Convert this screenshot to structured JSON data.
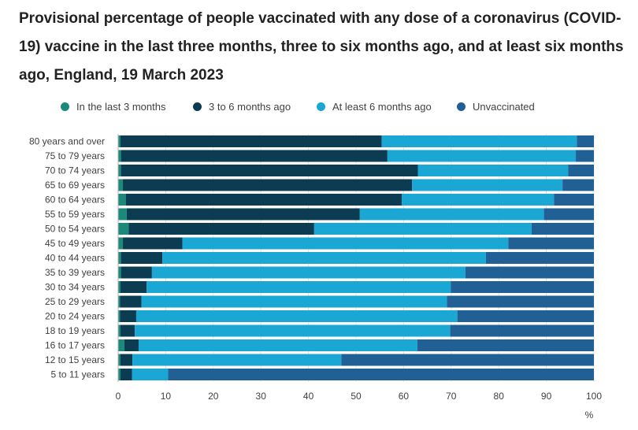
{
  "page": {
    "title": "Provisional percentage of people vaccinated with any dose of a coronavirus (COVID-19) vaccine in the last three months, three to six months ago, and at least six months ago, England, 19 March 2023"
  },
  "colors": {
    "last_3_months": "#1c8a7a",
    "three_to_six_months": "#0b3c52",
    "at_least_6_months": "#1aa7d4",
    "unvaccinated": "#206095",
    "axis_text": "#414042",
    "gridline": "#e0e0e0"
  },
  "chart_data": {
    "type": "bar",
    "orientation": "horizontal",
    "stacked": true,
    "title": "Provisional percentage of people vaccinated with any dose of a coronavirus (COVID-19) vaccine in the last three months, three to six months ago, and at least six months ago, England, 19 March 2023",
    "xlabel": "%",
    "ylabel": "",
    "xlim": [
      0,
      100
    ],
    "xticks": [
      0,
      10,
      20,
      30,
      40,
      50,
      60,
      70,
      80,
      90,
      100
    ],
    "grid": true,
    "legend_position": "top",
    "categories": [
      "80 years and over",
      "75 to 79 years",
      "70 to 74 years",
      "65 to 69 years",
      "60 to 64 years",
      "55 to 59 years",
      "50 to 54 years",
      "45 to 49 years",
      "40 to 44 years",
      "35 to 39 years",
      "30 to 34 years",
      "25 to 29 years",
      "20 to 24 years",
      "18 to 19 years",
      "16 to 17 years",
      "12 to 15 years",
      "5 to 11 years"
    ],
    "series": [
      {
        "name": "In the last 3 months",
        "values": [
          0.5,
          0.6,
          0.6,
          1.0,
          1.6,
          1.8,
          2.2,
          1.0,
          0.6,
          0.6,
          0.5,
          0.4,
          0.4,
          0.5,
          1.3,
          0.5,
          0.5
        ]
      },
      {
        "name": "3 to 6 months ago",
        "values": [
          54.9,
          56.0,
          62.4,
          60.8,
          58.0,
          49.0,
          39.0,
          12.5,
          8.7,
          6.5,
          5.5,
          4.5,
          3.4,
          3.0,
          3.0,
          2.5,
          2.4
        ]
      },
      {
        "name": "At least 6 months ago",
        "values": [
          41.0,
          39.6,
          31.6,
          31.6,
          32.0,
          38.7,
          45.7,
          68.5,
          68.0,
          65.9,
          63.9,
          64.2,
          67.5,
          66.3,
          58.6,
          43.9,
          7.6
        ]
      },
      {
        "name": "Unvaccinated",
        "values": [
          3.6,
          3.8,
          5.4,
          6.6,
          8.4,
          10.5,
          13.1,
          18.0,
          22.7,
          27.0,
          30.1,
          30.9,
          28.7,
          30.2,
          37.1,
          53.1,
          89.5
        ]
      }
    ]
  }
}
